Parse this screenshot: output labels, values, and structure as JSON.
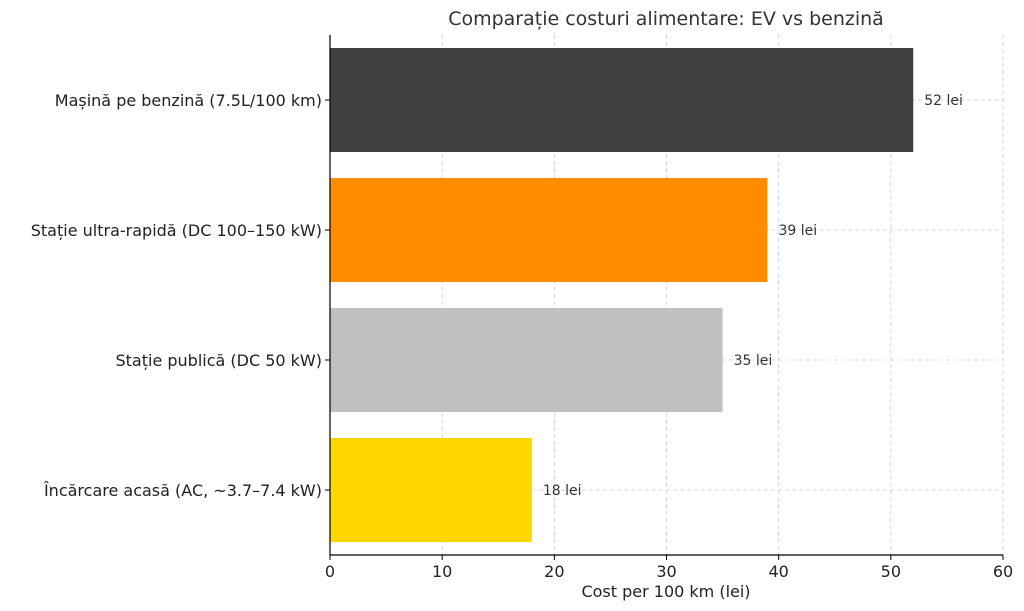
{
  "chart_data": {
    "type": "bar",
    "orientation": "horizontal",
    "title": "Comparație costuri alimentare: EV vs benzină",
    "xlabel": "Cost per 100 km (lei)",
    "ylabel": "",
    "xlim": [
      0,
      60
    ],
    "xticks": [
      0,
      10,
      20,
      30,
      40,
      50,
      60
    ],
    "grid": true,
    "categories": [
      "Mașină pe benzină (7.5L/100 km)",
      "Stație ultra-rapidă (DC 100–150 kW)",
      "Stație publică (DC 50 kW)",
      "Încărcare acasă (AC, ~3.7–7.4 kW)"
    ],
    "values": [
      52,
      39,
      35,
      18
    ],
    "data_labels": [
      "52 lei",
      "39 lei",
      "35 lei",
      "18 lei"
    ],
    "colors": [
      "#404040",
      "#ff8c00",
      "#c0c0c0",
      "#ffd700"
    ]
  }
}
